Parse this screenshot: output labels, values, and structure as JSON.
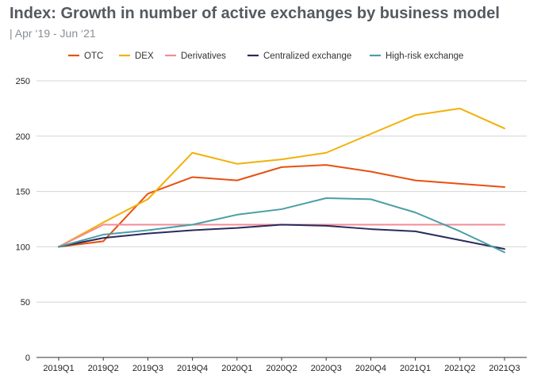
{
  "header": {
    "title": "Index: Growth in number of active exchanges by business model",
    "subtitle": "| Apr ‘19 - Jun ‘21"
  },
  "chart_data": {
    "type": "line",
    "title": "Index: Growth in number of active exchanges by business model",
    "subtitle": "| Apr ‘19 - Jun ‘21",
    "xlabel": "",
    "ylabel": "",
    "categories": [
      "2019Q1",
      "2019Q2",
      "2019Q3",
      "2019Q4",
      "2020Q1",
      "2020Q2",
      "2020Q3",
      "2020Q4",
      "2021Q1",
      "2021Q2",
      "2021Q3"
    ],
    "ylim": [
      0,
      250
    ],
    "yticks": [
      0,
      50,
      100,
      150,
      200,
      250
    ],
    "grid": "horizontal",
    "legend": "top",
    "series": [
      {
        "name": "OTC",
        "color": "#e8500f",
        "values": [
          100,
          105,
          148,
          163,
          160,
          172,
          174,
          168,
          160,
          157,
          154
        ]
      },
      {
        "name": "DEX",
        "color": "#f2b10a",
        "values": [
          100,
          122,
          143,
          185,
          175,
          179,
          185,
          202,
          219,
          225,
          207
        ]
      },
      {
        "name": "Derivatives",
        "color": "#f28b96",
        "values": [
          100,
          120,
          120,
          120,
          120,
          120,
          120,
          120,
          120,
          120,
          120
        ]
      },
      {
        "name": "Centralized exchange",
        "color": "#2a2a5e",
        "values": [
          100,
          108,
          112,
          115,
          117,
          120,
          119,
          116,
          114,
          106,
          98
        ]
      },
      {
        "name": "High-risk exchange",
        "color": "#4a9ea6",
        "values": [
          100,
          111,
          115,
          120,
          129,
          134,
          144,
          143,
          131,
          114,
          95
        ]
      }
    ]
  }
}
